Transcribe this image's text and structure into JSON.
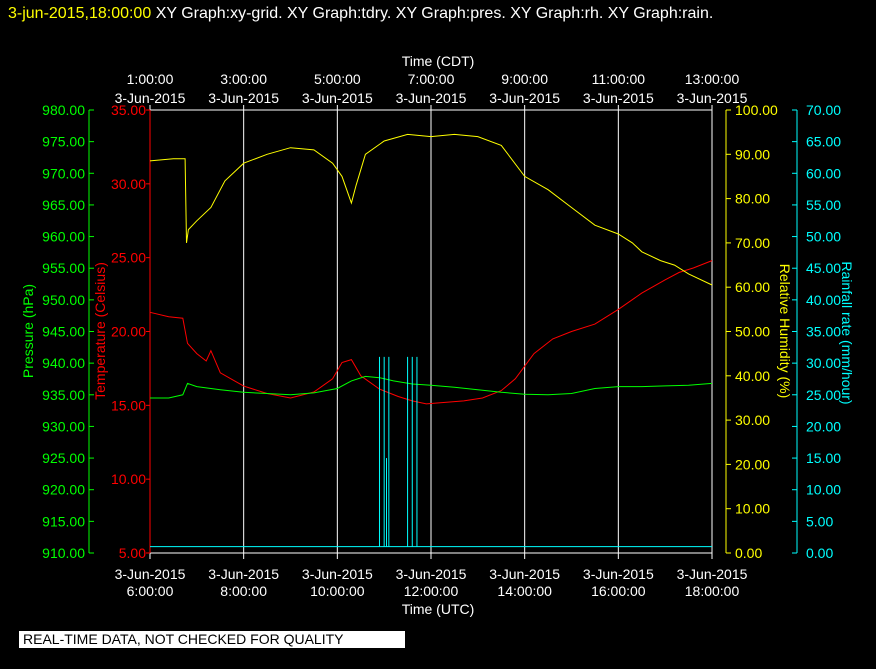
{
  "header": {
    "timestamp": "3-jun-2015,18:00:00",
    "graphs": "XY Graph:xy-grid.  XY Graph:tdry.  XY Graph:pres.  XY Graph:rh.  XY Graph:rain."
  },
  "banner": "REAL-TIME DATA, NOT CHECKED FOR QUALITY",
  "colors": {
    "background": "#000000",
    "temperature": "#ff0000",
    "pressure": "#00ff00",
    "humidity": "#ffff00",
    "rainfall": "#00ffff",
    "grid": "#ffffff"
  },
  "chart_data": {
    "type": "line",
    "top_axis": {
      "label": "Time (CDT)",
      "ticks": [
        {
          "time": "1:00:00",
          "date": "3-Jun-2015"
        },
        {
          "time": "3:00:00",
          "date": "3-Jun-2015"
        },
        {
          "time": "5:00:00",
          "date": "3-Jun-2015"
        },
        {
          "time": "7:00:00",
          "date": "3-Jun-2015"
        },
        {
          "time": "9:00:00",
          "date": "3-Jun-2015"
        },
        {
          "time": "11:00:00",
          "date": "3-Jun-2015"
        },
        {
          "time": "13:00:00",
          "date": "3-Jun-2015"
        }
      ]
    },
    "bottom_axis": {
      "label": "Time (UTC)",
      "hours": [
        6,
        8,
        10,
        12,
        14,
        16,
        18
      ],
      "ticks": [
        {
          "time": "6:00:00",
          "date": "3-Jun-2015"
        },
        {
          "time": "8:00:00",
          "date": "3-Jun-2015"
        },
        {
          "time": "10:00:00",
          "date": "3-Jun-2015"
        },
        {
          "time": "12:00:00",
          "date": "3-Jun-2015"
        },
        {
          "time": "14:00:00",
          "date": "3-Jun-2015"
        },
        {
          "time": "16:00:00",
          "date": "3-Jun-2015"
        },
        {
          "time": "18:00:00",
          "date": "3-Jun-2015"
        }
      ],
      "xlim": [
        6,
        18
      ]
    },
    "axes": {
      "pressure": {
        "label": "Pressure (hPa)",
        "ylim": [
          910,
          980
        ],
        "ticks": [
          "910.00",
          "915.00",
          "920.00",
          "925.00",
          "930.00",
          "935.00",
          "940.00",
          "945.00",
          "950.00",
          "955.00",
          "960.00",
          "965.00",
          "970.00",
          "975.00",
          "980.00"
        ]
      },
      "temperature": {
        "label": "Temperature (Celsius)",
        "ylim": [
          5,
          35
        ],
        "ticks": [
          "5.00",
          "10.00",
          "15.00",
          "20.00",
          "25.00",
          "30.00",
          "35.00"
        ]
      },
      "humidity": {
        "label": "Relative Humidity (%)",
        "ylim": [
          0,
          100
        ],
        "ticks": [
          "0.00",
          "10.00",
          "20.00",
          "30.00",
          "40.00",
          "50.00",
          "60.00",
          "70.00",
          "80.00",
          "90.00",
          "100.00"
        ]
      },
      "rainfall": {
        "label": "Rainfall rate (mm/hour)",
        "ylim": [
          0,
          70
        ],
        "ticks": [
          "0.00",
          "5.00",
          "10.00",
          "15.00",
          "20.00",
          "25.00",
          "30.00",
          "35.00",
          "40.00",
          "45.00",
          "50.00",
          "55.00",
          "60.00",
          "65.00",
          "70.00"
        ]
      }
    },
    "series": [
      {
        "name": "Temperature",
        "axis": "temperature",
        "x": [
          6.0,
          6.4,
          6.7,
          6.8,
          7.0,
          7.2,
          7.3,
          7.5,
          8.0,
          8.5,
          9.0,
          9.5,
          9.9,
          10.1,
          10.3,
          10.5,
          10.9,
          11.3,
          11.6,
          11.9,
          12.3,
          12.7,
          13.1,
          13.5,
          13.8,
          14.2,
          14.6,
          15.0,
          15.5,
          16.0,
          16.5,
          17.0,
          17.3,
          17.6,
          18.0
        ],
        "y": [
          21.3,
          21.0,
          20.9,
          19.2,
          18.5,
          18.0,
          18.7,
          17.2,
          16.3,
          15.8,
          15.5,
          15.9,
          16.8,
          17.9,
          18.1,
          17.0,
          16.1,
          15.6,
          15.3,
          15.1,
          15.2,
          15.3,
          15.5,
          16.0,
          16.8,
          18.5,
          19.5,
          20.0,
          20.5,
          21.5,
          22.6,
          23.5,
          24.0,
          24.3,
          24.8
        ]
      },
      {
        "name": "Pressure",
        "axis": "pressure",
        "x": [
          6.0,
          6.4,
          6.7,
          6.8,
          7.0,
          7.5,
          8.0,
          8.5,
          9.0,
          9.5,
          10.0,
          10.3,
          10.6,
          10.9,
          11.2,
          11.6,
          12.0,
          12.5,
          13.0,
          13.5,
          14.0,
          14.5,
          15.0,
          15.5,
          16.0,
          16.5,
          17.0,
          17.5,
          18.0
        ],
        "y": [
          934.5,
          934.5,
          935.0,
          936.8,
          936.3,
          935.8,
          935.4,
          935.2,
          935.0,
          935.3,
          936.0,
          937.2,
          937.9,
          937.7,
          937.2,
          936.7,
          936.5,
          936.2,
          935.8,
          935.4,
          935.1,
          935.0,
          935.2,
          936.0,
          936.3,
          936.3,
          936.4,
          936.5,
          936.8
        ]
      },
      {
        "name": "Relative Humidity",
        "axis": "humidity",
        "x": [
          6.0,
          6.5,
          6.75,
          6.78,
          6.82,
          7.0,
          7.3,
          7.6,
          8.0,
          8.5,
          9.0,
          9.5,
          9.9,
          10.1,
          10.3,
          10.4,
          10.6,
          11.0,
          11.5,
          12.0,
          12.5,
          13.0,
          13.5,
          14.0,
          14.5,
          15.0,
          15.5,
          16.0,
          16.3,
          16.5,
          16.9,
          17.2,
          17.5,
          18.0
        ],
        "y": [
          88.5,
          89.0,
          89.0,
          70.0,
          73.0,
          75.0,
          78.0,
          84.0,
          88.0,
          90.0,
          91.5,
          91.0,
          88.0,
          85.0,
          79.0,
          83.0,
          90.0,
          93.0,
          94.5,
          94.0,
          94.5,
          94.0,
          92.0,
          85.0,
          82.0,
          78.0,
          74.0,
          72.0,
          70.0,
          68.0,
          66.0,
          65.0,
          63.0,
          60.5
        ]
      },
      {
        "name": "Rainfall rate",
        "axis": "rainfall",
        "type": "bar",
        "x": [
          10.9,
          11.0,
          11.05,
          11.1,
          11.5,
          11.6,
          11.7
        ],
        "y": [
          31.0,
          31.0,
          15.0,
          31.0,
          31.0,
          31.0,
          31.0
        ],
        "baseline": 1.0
      }
    ],
    "grid": true,
    "legend": "none"
  }
}
